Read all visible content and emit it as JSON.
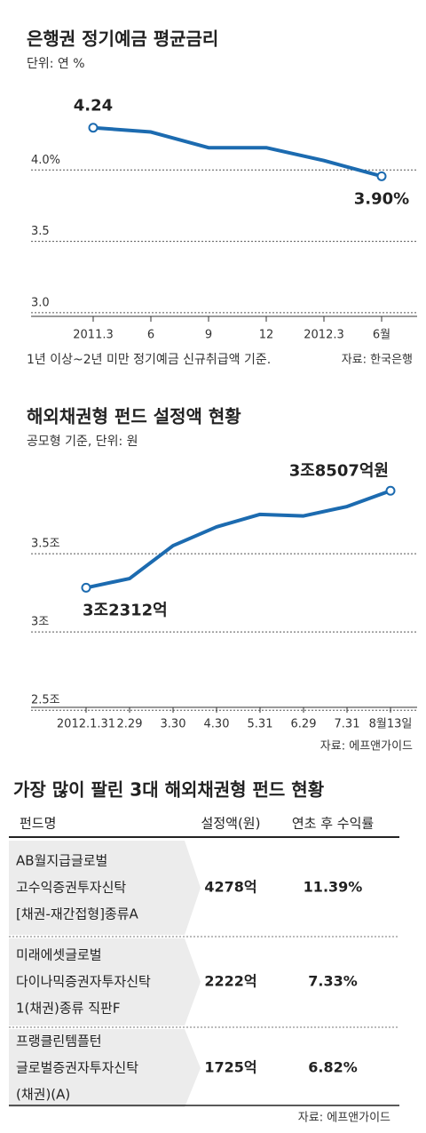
{
  "chart_data": [
    {
      "type": "line",
      "title": "은행권 정기예금 평균금리",
      "subtitle": "단위: 연 %",
      "categories": [
        "2011.3",
        "6",
        "9",
        "12",
        "2012.3",
        "6월"
      ],
      "values": [
        4.24,
        4.21,
        4.1,
        4.1,
        4.01,
        3.9
      ],
      "value_labels": [
        "4.24",
        null,
        null,
        null,
        null,
        "3.90%"
      ],
      "color": "#1c6bb0",
      "ylim": [
        2.9,
        4.4
      ],
      "yticks": [
        {
          "value": 3,
          "label": "3.0"
        },
        3.5,
        {
          "value": 4,
          "label": "4.0%"
        }
      ],
      "grid": true,
      "note": "1년 이상~2년 미만 정기예금 신규취급액 기준.",
      "source": "자료: 한국은행"
    },
    {
      "type": "line",
      "title": "해외채권형 펀드 설정액 현황",
      "subtitle": "공모형 기준, 단위: 원",
      "categories": [
        "2012.1.31",
        "2.29",
        "3.30",
        "4.30",
        "5.31",
        "6.29",
        "7.31",
        "8월13일"
      ],
      "values": [
        3.2312,
        3.29,
        3.5,
        3.62,
        3.7,
        3.69,
        3.75,
        3.8507
      ],
      "value_labels": [
        "3조2312억",
        null,
        null,
        null,
        null,
        null,
        null,
        "3조8507억원"
      ],
      "color": "#1c6bb0",
      "ylim": [
        2.45,
        4.0
      ],
      "yticks": [
        {
          "value": 2.5,
          "label": "2.5조"
        },
        {
          "value": 3,
          "label": "3조"
        },
        {
          "value": 3.5,
          "label": "3.5조"
        }
      ],
      "grid": true,
      "source": "자료: 에프앤가이드"
    }
  ],
  "table": {
    "title": "가장 많이 팔린 3대 해외채권형 펀드 현황",
    "header": [
      "펀드명",
      "설정액(원)",
      "연초 후 수익률"
    ],
    "rows": [
      [
        [
          "AB월지급글로벌",
          "고수익증권투자신탁",
          "[채권-재간접형]종류A"
        ],
        "4278억",
        "11.39%"
      ],
      [
        [
          "미래에셋글로벌",
          "다이나믹증권자투자신탁",
          "1(채권)종류 직판F"
        ],
        "2222억",
        "7.33%"
      ],
      [
        [
          "프랭클린템플턴",
          "글로벌증권자투자신탁",
          "(채권)(A)"
        ],
        "1725억",
        "6.82%"
      ]
    ],
    "source": "자료: 에프앤가이드"
  }
}
